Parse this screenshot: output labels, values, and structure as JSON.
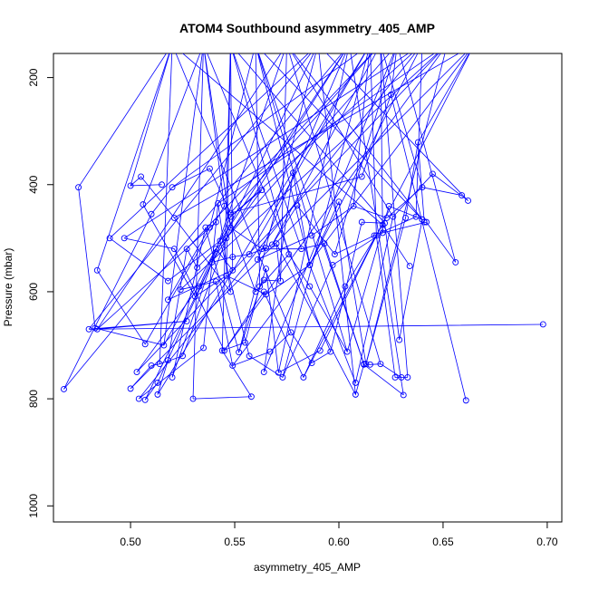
{
  "chart_data": {
    "type": "line",
    "title": "ATOM4 Southbound asymmetry_405_AMP",
    "xlabel": "asymmetry_405_AMP",
    "ylabel": "Pressure (mbar)",
    "xlim": [
      0.463,
      0.707
    ],
    "ylim": [
      1030,
      155
    ],
    "y_reversed": true,
    "grid": false,
    "legend": "none",
    "x_ticks": [
      0.5,
      0.55,
      0.6,
      0.65,
      0.7
    ],
    "x_tick_labels": [
      "0.50",
      "0.55",
      "0.60",
      "0.65",
      "0.70"
    ],
    "y_ticks": [
      200,
      400,
      600,
      800,
      1000
    ],
    "y_tick_labels": [
      "200",
      "400",
      "600",
      "800",
      "1000"
    ],
    "series_color": "#0000ff",
    "series": [
      {
        "x": [
          0.475,
          0.483,
          0.516,
          0.541,
          0.549,
          0.518,
          0.538,
          0.541,
          0.484,
          0.527,
          0.48,
          0.698
        ],
        "y": [
          405,
          668,
          700,
          520,
          560,
          615,
          480,
          470,
          670,
          655,
          670,
          661
        ]
      },
      {
        "x": [
          0.468,
          0.51,
          0.52,
          0.538,
          0.548,
          0.611,
          0.625,
          0.661
        ],
        "y": [
          782,
          455,
          405,
          370,
          453,
          385,
          232,
          803
        ]
      },
      {
        "x": [
          0.504,
          0.535,
          0.542,
          0.548,
          0.521,
          0.505,
          0.5,
          0.515
        ],
        "y": [
          800,
          705,
          435,
          600,
          462,
          385,
          402,
          400
        ]
      },
      {
        "x": [
          0.53,
          0.558,
          0.544,
          0.555,
          0.562,
          0.564,
          0.572,
          0.57,
          0.608,
          0.612,
          0.631
        ],
        "y": [
          800,
          796,
          710,
          695,
          590,
          578,
          580,
          510,
          792,
          736,
          793
        ]
      },
      {
        "x": [
          0.513,
          0.518,
          0.527,
          0.532,
          0.546,
          0.563,
          0.548,
          0.533,
          0.503
        ],
        "y": [
          792,
          728,
          520,
          555,
          500,
          410,
          460,
          590,
          750
        ]
      },
      {
        "x": [
          0.5,
          0.51,
          0.514,
          0.525,
          0.548,
          0.563,
          0.582,
          0.593,
          0.612,
          0.615,
          0.62,
          0.63
        ],
        "y": [
          781,
          738,
          735,
          720,
          480,
          520,
          520,
          510,
          735,
          736,
          735,
          760
        ]
      },
      {
        "x": [
          0.507,
          0.513,
          0.539,
          0.549,
          0.557,
          0.565,
          0.568,
          0.58,
          0.598,
          0.617,
          0.637
        ],
        "y": [
          802,
          770,
          545,
          535,
          530,
          518,
          512,
          439,
          530,
          495,
          460
        ]
      },
      {
        "x": [
          0.524,
          0.541,
          0.549,
          0.567,
          0.577,
          0.587,
          0.596,
          0.611,
          0.622,
          0.629,
          0.64
        ],
        "y": [
          596,
          581,
          738,
          712,
          676,
          733,
          712,
          470,
          472,
          690,
          465
        ]
      },
      {
        "x": [
          0.52,
          0.536,
          0.552,
          0.565,
          0.571,
          0.591,
          0.618,
          0.627,
          0.633
        ],
        "y": [
          760,
          480,
          713,
          557,
          751,
          710,
          495,
          760,
          760
        ]
      },
      {
        "x": [
          0.564,
          0.578,
          0.586,
          0.6,
          0.613,
          0.632,
          0.638,
          0.641
        ],
        "y": [
          750,
          378,
          550,
          432,
          735,
          462,
          321,
          470
        ]
      },
      {
        "x": [
          0.484,
          0.507,
          0.545,
          0.56,
          0.576,
          0.586,
          0.604,
          0.624,
          0.64
        ],
        "y": [
          560,
          698,
          440,
          600,
          530,
          590,
          712,
          440,
          465
        ]
      },
      {
        "x": [
          0.49,
          0.518,
          0.543,
          0.557,
          0.573,
          0.597,
          0.621,
          0.642,
          0.656
        ],
        "y": [
          500,
          580,
          505,
          720,
          760,
          550,
          490,
          470,
          545
        ]
      },
      {
        "x": [
          0.497,
          0.521,
          0.545,
          0.564,
          0.583,
          0.603,
          0.621,
          0.634
        ],
        "y": [
          500,
          520,
          710,
          600,
          760,
          590,
          475,
          552
        ]
      },
      {
        "x": [
          0.506,
          0.531,
          0.546,
          0.565,
          0.586,
          0.608,
          0.626,
          0.645,
          0.662
        ],
        "y": [
          437,
          609,
          570,
          605,
          550,
          770,
          460,
          380,
          430
        ]
      },
      {
        "x": [
          0.561,
          0.587,
          0.607,
          0.623,
          0.64,
          0.659
        ],
        "y": [
          540,
          495,
          440,
          462,
          405,
          420
        ]
      }
    ],
    "upper_endpoints_above_frame": true
  }
}
